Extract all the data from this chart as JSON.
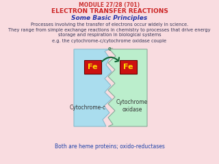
{
  "bg_color": "#f9dce0",
  "title_module": "MODULE 27/28 (701)",
  "title_module_color": "#cc3333",
  "title_main": "ELECTRON TRANSFER REACTIONS",
  "title_main_color": "#cc2222",
  "title_sub": "Some Basic Principles",
  "title_sub_color": "#2233aa",
  "line1": "Processes involving the transfer of electrons occur widely in science.",
  "line2": "They range from simple exchange reactions in chemistry to processes that drive energy\nstorage and respiration in biological systems",
  "line3": "e.g. the cytochrome-c/cytochrome oxidase couple",
  "body_color": "#333355",
  "bottom_text": "Both are heme proteins; oxido-reductases",
  "bottom_color": "#2244aa",
  "cyto_c_color": "#aaddee",
  "cyto_ox_color": "#bbeecc",
  "fe_color": "#cc1111",
  "fe_text_color": "#ffdd00",
  "arrow_color": "#116633",
  "label_cyto_c": "Cytochrome-c",
  "label_cyto_ox": "Cytochrome\noxidase"
}
